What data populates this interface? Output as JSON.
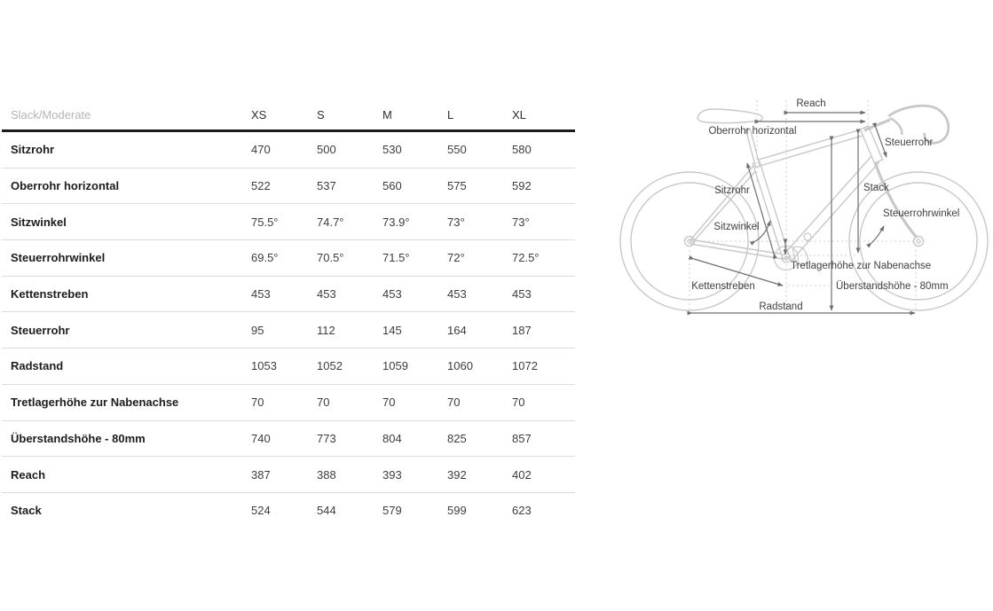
{
  "table": {
    "corner_label": "Slack/Moderate",
    "columns": [
      "XS",
      "S",
      "M",
      "L",
      "XL"
    ],
    "rows": [
      {
        "label": "Sitzrohr",
        "values": [
          "470",
          "500",
          "530",
          "550",
          "580"
        ]
      },
      {
        "label": "Oberrohr horizontal",
        "values": [
          "522",
          "537",
          "560",
          "575",
          "592"
        ]
      },
      {
        "label": "Sitzwinkel",
        "values": [
          "75.5°",
          "74.7°",
          "73.9°",
          "73°",
          "73°"
        ]
      },
      {
        "label": "Steuerrohrwinkel",
        "values": [
          "69.5°",
          "70.5°",
          "71.5°",
          "72°",
          "72.5°"
        ]
      },
      {
        "label": "Kettenstreben",
        "values": [
          "453",
          "453",
          "453",
          "453",
          "453"
        ]
      },
      {
        "label": "Steuerrohr",
        "values": [
          "95",
          "112",
          "145",
          "164",
          "187"
        ]
      },
      {
        "label": "Radstand",
        "values": [
          "1053",
          "1052",
          "1059",
          "1060",
          "1072"
        ]
      },
      {
        "label": "Tretlagerhöhe zur Nabenachse",
        "values": [
          "70",
          "70",
          "70",
          "70",
          "70"
        ]
      },
      {
        "label": "Überstandshöhe - 80mm",
        "values": [
          "740",
          "773",
          "804",
          "825",
          "857"
        ]
      },
      {
        "label": "Reach",
        "values": [
          "387",
          "388",
          "393",
          "392",
          "402"
        ]
      },
      {
        "label": "Stack",
        "values": [
          "524",
          "544",
          "579",
          "599",
          "623"
        ]
      }
    ]
  },
  "diagram": {
    "labels": {
      "reach": "Reach",
      "oberrohr": "Oberrohr horizontal",
      "steuerrohr": "Steuerrohr",
      "sitzrohr": "Sitzrohr",
      "stack": "Stack",
      "sitzwinkel": "Sitzwinkel",
      "steuerrohrwinkel": "Steuerrohrwinkel",
      "tretlagerhoehe": "Tretlagerhöhe zur Nabenachse",
      "kettenstreben": "Kettenstreben",
      "ueberstandshoehe": "Überstandshöhe - 80mm",
      "radstand": "Radstand"
    }
  },
  "colors": {
    "header_rule": "#1a1a1a",
    "row_separator": "#dcdcdc",
    "corner_text": "#b5b5b5",
    "row_label_text": "#1d1d1d",
    "value_text": "#3d3d3d",
    "bike_outline": "#c8c8c8",
    "dimension_arrow": "#6e6e6e",
    "diagram_label_text": "#3f3f3f"
  },
  "chart_data": {
    "type": "table",
    "title": "Slack/Moderate",
    "columns": [
      "XS",
      "S",
      "M",
      "L",
      "XL"
    ],
    "rows": [
      {
        "label": "Sitzrohr",
        "values": [
          470,
          500,
          530,
          550,
          580
        ]
      },
      {
        "label": "Oberrohr horizontal",
        "values": [
          522,
          537,
          560,
          575,
          592
        ]
      },
      {
        "label": "Sitzwinkel",
        "values": [
          75.5,
          74.7,
          73.9,
          73,
          73
        ]
      },
      {
        "label": "Steuerrohrwinkel",
        "values": [
          69.5,
          70.5,
          71.5,
          72,
          72.5
        ]
      },
      {
        "label": "Kettenstreben",
        "values": [
          453,
          453,
          453,
          453,
          453
        ]
      },
      {
        "label": "Steuerrohr",
        "values": [
          95,
          112,
          145,
          164,
          187
        ]
      },
      {
        "label": "Radstand",
        "values": [
          1053,
          1052,
          1059,
          1060,
          1072
        ]
      },
      {
        "label": "Tretlagerhöhe zur Nabenachse",
        "values": [
          70,
          70,
          70,
          70,
          70
        ]
      },
      {
        "label": "Überstandshöhe - 80mm",
        "values": [
          740,
          773,
          804,
          825,
          857
        ]
      },
      {
        "label": "Reach",
        "values": [
          387,
          388,
          393,
          392,
          402
        ]
      },
      {
        "label": "Stack",
        "values": [
          524,
          544,
          579,
          599,
          623
        ]
      }
    ]
  }
}
